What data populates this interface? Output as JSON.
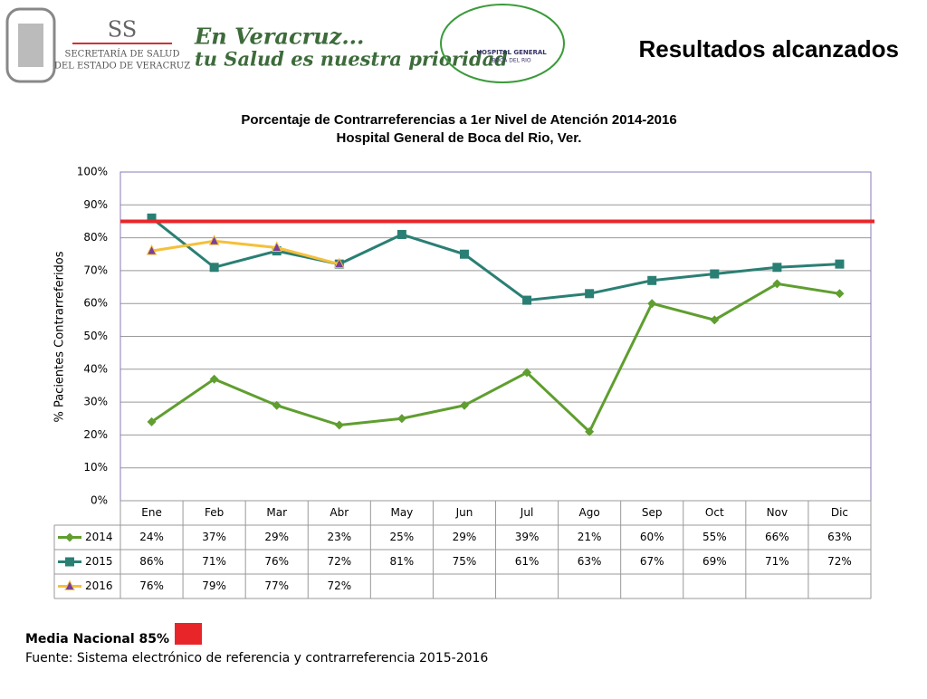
{
  "header": {
    "org_short": "SS",
    "org_line1": "SECRETARÍA DE SALUD",
    "org_line2": "DEL ESTADO DE VERACRUZ",
    "slogan1": "En Veracruz...",
    "slogan2": "tu Salud es nuestra prioridad",
    "hospital_logo": "HOSPITAL GENERAL",
    "hospital_logo2": "BOCA DEL RIO",
    "slide_title": "Resultados alcanzados"
  },
  "chart_data": {
    "type": "line",
    "title": "Porcentaje de  Contrarreferencias a 1er Nivel de Atención 2014-2016",
    "subtitle": "Hospital General de Boca del Rio, Ver.",
    "y_label": "% Pacientes Contrarreferidos",
    "categories": [
      "Ene",
      "Feb",
      "Mar",
      "Abr",
      "May",
      "Jun",
      "Jul",
      "Ago",
      "Sep",
      "Oct",
      "Nov",
      "Dic"
    ],
    "series": [
      {
        "name": "2014",
        "color": "#5f9e2f",
        "marker": "diamond",
        "values": [
          24,
          37,
          29,
          23,
          25,
          29,
          39,
          21,
          60,
          55,
          66,
          63
        ],
        "value_labels": [
          "24%",
          "37%",
          "29%",
          "23%",
          "25%",
          "29%",
          "39%",
          "21%",
          "60%",
          "55%",
          "66%",
          "63%"
        ]
      },
      {
        "name": "2015",
        "color": "#2a7f74",
        "marker": "square",
        "values": [
          86,
          71,
          76,
          72,
          81,
          75,
          61,
          63,
          67,
          69,
          71,
          72
        ],
        "value_labels": [
          "86%",
          "71%",
          "76%",
          "72%",
          "81%",
          "75%",
          "61%",
          "63%",
          "67%",
          "69%",
          "71%",
          "72%"
        ]
      },
      {
        "name": "2016",
        "color": "#f5c03a",
        "marker": "triangle",
        "marker_color": "#7b3f9a",
        "values": [
          76,
          79,
          77,
          72,
          null,
          null,
          null,
          null,
          null,
          null,
          null,
          null
        ],
        "value_labels": [
          "76%",
          "79%",
          "77%",
          "72%",
          null,
          null,
          null,
          null,
          null,
          null,
          null,
          null
        ]
      }
    ],
    "reference_line": {
      "value": 85,
      "color": "#e8262a",
      "label": "Media Nacional 85%"
    },
    "ylim": [
      0,
      100
    ],
    "yticks": [
      {
        "value": 0,
        "label": "0%"
      },
      {
        "value": 10,
        "label": "10%"
      },
      {
        "value": 20,
        "label": "20%"
      },
      {
        "value": 30,
        "label": "30%"
      },
      {
        "value": 40,
        "label": "40%"
      },
      {
        "value": 50,
        "label": "50%"
      },
      {
        "value": 60,
        "label": "60%"
      },
      {
        "value": 70,
        "label": "70%"
      },
      {
        "value": 80,
        "label": "80%"
      },
      {
        "value": 90,
        "label": "90%"
      },
      {
        "value": 100,
        "label": "100%"
      }
    ],
    "grid": true
  },
  "footer": {
    "source": "Fuente: Sistema electrónico de referencia y contrarreferencia 2015-2016"
  }
}
